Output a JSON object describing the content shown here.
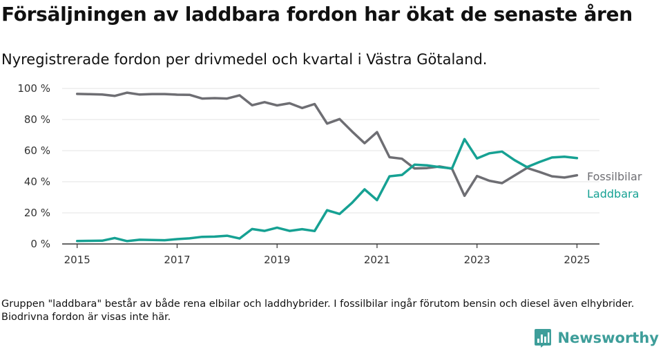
{
  "title": "Försäljningen av laddbara fordon har ökat de senaste åren",
  "subtitle": "Nyregistrerade fordon per drivmedel och kvartal i Västra Götaland.",
  "footnote": "Gruppen \"laddbara\" består av både rena elbilar och laddhybrider. I fossilbilar ingår förutom bensin och diesel även elhybrider. Biodrivna fordon är visas inte här.",
  "brand": {
    "name": "Newsworthy",
    "icon": "bar-chart-logo-icon",
    "color": "#3e9e9a"
  },
  "chart_data": {
    "type": "line",
    "title": "Försäljningen av laddbara fordon har ökat de senaste åren",
    "xlabel": "",
    "ylabel": "",
    "xlim": [
      2015,
      2025
    ],
    "ylim": [
      0,
      100
    ],
    "y_ticks": [
      0,
      20,
      40,
      60,
      80,
      100
    ],
    "y_tick_labels": [
      "0 %",
      "20 %",
      "40 %",
      "60 %",
      "80 %",
      "100 %"
    ],
    "x_ticks": [
      2015,
      2017,
      2019,
      2021,
      2023,
      2025
    ],
    "x_tick_labels": [
      "2015",
      "2017",
      "2019",
      "2021",
      "2023",
      "2025"
    ],
    "grid": true,
    "legend": "inline-right",
    "x": [
      2015.0,
      2015.25,
      2015.5,
      2015.75,
      2016.0,
      2016.25,
      2016.5,
      2016.75,
      2017.0,
      2017.25,
      2017.5,
      2017.75,
      2018.0,
      2018.25,
      2018.5,
      2018.75,
      2019.0,
      2019.25,
      2019.5,
      2019.75,
      2020.0,
      2020.25,
      2020.5,
      2020.75,
      2021.0,
      2021.25,
      2021.5,
      2021.75,
      2022.0,
      2022.25,
      2022.5,
      2022.75,
      2023.0,
      2023.25,
      2023.5,
      2023.75,
      2024.0,
      2024.25,
      2024.5,
      2024.75,
      2025.0
    ],
    "series": [
      {
        "name": "Fossilbilar",
        "color": "#6e6e73",
        "values": [
          96.5,
          96.3,
          96.1,
          95.2,
          97.3,
          96.1,
          96.4,
          96.4,
          96.0,
          95.9,
          93.5,
          93.8,
          93.5,
          95.6,
          89.2,
          91.2,
          89.1,
          90.5,
          87.4,
          90.0,
          77.4,
          80.3,
          72.3,
          64.8,
          71.9,
          55.8,
          54.8,
          48.6,
          48.8,
          49.8,
          48.4,
          31.0,
          43.7,
          40.6,
          39.1,
          44.0,
          48.9,
          46.3,
          43.5,
          42.7,
          44.2
        ]
      },
      {
        "name": "Laddbara",
        "color": "#16a193",
        "values": [
          1.9,
          2.0,
          2.1,
          3.8,
          1.8,
          2.7,
          2.6,
          2.4,
          3.1,
          3.6,
          4.6,
          4.7,
          5.3,
          3.5,
          9.6,
          8.4,
          10.5,
          8.4,
          9.5,
          8.3,
          21.7,
          19.3,
          26.5,
          35.1,
          28.2,
          43.5,
          44.4,
          51.0,
          50.6,
          49.4,
          48.6,
          67.4,
          55.0,
          58.3,
          59.4,
          53.9,
          49.4,
          52.7,
          55.6,
          56.1,
          55.2
        ]
      }
    ]
  }
}
